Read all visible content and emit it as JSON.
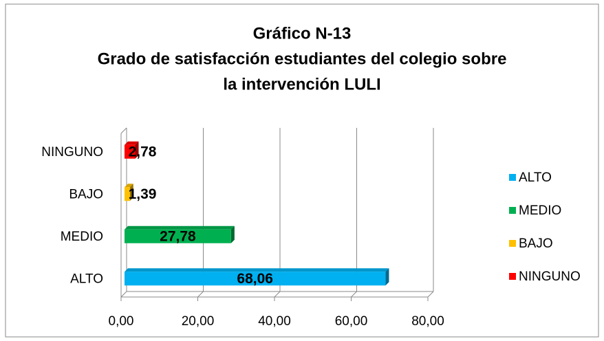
{
  "chart_data": {
    "type": "bar",
    "orientation": "horizontal",
    "title": [
      "Gráfico N-13",
      "Grado de satisfacción estudiantes del colegio sobre",
      "la intervención LULI"
    ],
    "categories": [
      "ALTO",
      "MEDIO",
      "BAJO",
      "NINGUNO"
    ],
    "values": [
      68.06,
      27.78,
      1.39,
      2.78
    ],
    "value_labels": [
      "68,06",
      "27,78",
      "1,39",
      "2,78"
    ],
    "colors": [
      "#00b0f0",
      "#00b050",
      "#ffc000",
      "#ff0000"
    ],
    "xlim": [
      0,
      80
    ],
    "xticks": [
      {
        "value": 0,
        "label": "0,00"
      },
      {
        "value": 20,
        "label": "20,00"
      },
      {
        "value": 40,
        "label": "40,00"
      },
      {
        "value": 60,
        "label": "60,00"
      },
      {
        "value": 80,
        "label": "80,00"
      }
    ],
    "grid": true,
    "legend": "right"
  }
}
